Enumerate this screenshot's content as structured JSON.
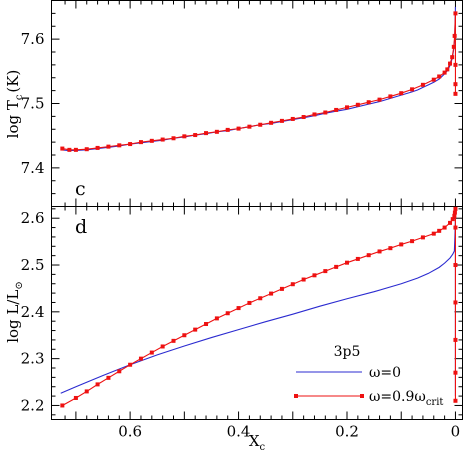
{
  "chart_data": [
    {
      "type": "line",
      "panel_label": "c",
      "xlabel": "X",
      "xlabel_sub": "c",
      "ylabel": "log T",
      "ylabel_sub": "c",
      "ylabel_tail": "(K)",
      "xlim": [
        0.745,
        -0.013
      ],
      "ylim": [
        7.34,
        7.66
      ],
      "yticks": [
        7.4,
        7.5,
        7.6
      ],
      "ytick_labels": [
        "7.4",
        "7.5",
        "7.6"
      ],
      "grid": false,
      "series": [
        {
          "name": "ω=0",
          "color": "#2b2bd0",
          "marker": "none",
          "x": [
            0.728,
            0.715,
            0.7,
            0.68,
            0.66,
            0.64,
            0.62,
            0.6,
            0.58,
            0.56,
            0.54,
            0.52,
            0.5,
            0.48,
            0.46,
            0.44,
            0.42,
            0.4,
            0.38,
            0.36,
            0.34,
            0.32,
            0.3,
            0.28,
            0.26,
            0.24,
            0.22,
            0.2,
            0.18,
            0.16,
            0.14,
            0.12,
            0.1,
            0.08,
            0.07,
            0.06,
            0.05,
            0.04,
            0.03,
            0.02,
            0.015,
            0.01,
            0.006,
            0.003,
            0.0015,
            0.0
          ],
          "y": [
            7.428,
            7.427,
            7.427,
            7.428,
            7.43,
            7.432,
            7.434,
            7.437,
            7.439,
            7.441,
            7.443,
            7.446,
            7.448,
            7.451,
            7.453,
            7.456,
            7.458,
            7.461,
            7.464,
            7.467,
            7.469,
            7.472,
            7.475,
            7.478,
            7.481,
            7.485,
            7.488,
            7.491,
            7.495,
            7.499,
            7.503,
            7.508,
            7.513,
            7.518,
            7.521,
            7.525,
            7.529,
            7.533,
            7.538,
            7.546,
            7.551,
            7.559,
            7.57,
            7.585,
            7.6,
            7.65
          ]
        },
        {
          "name": "ω=0.9ω",
          "name_sub": "crit",
          "color": "#ee1111",
          "marker": "square",
          "x": [
            0.725,
            0.712,
            0.7,
            0.68,
            0.66,
            0.64,
            0.62,
            0.6,
            0.58,
            0.56,
            0.54,
            0.52,
            0.5,
            0.48,
            0.46,
            0.44,
            0.42,
            0.4,
            0.38,
            0.36,
            0.34,
            0.32,
            0.3,
            0.28,
            0.26,
            0.24,
            0.22,
            0.2,
            0.18,
            0.16,
            0.14,
            0.12,
            0.1,
            0.08,
            0.06,
            0.04,
            0.03,
            0.02,
            0.015,
            0.01,
            0.006,
            0.003,
            0.0015,
            0.0,
            0.0,
            0.0,
            0.0
          ],
          "y": [
            7.43,
            7.428,
            7.428,
            7.429,
            7.431,
            7.433,
            7.435,
            7.437,
            7.44,
            7.442,
            7.444,
            7.446,
            7.449,
            7.451,
            7.454,
            7.456,
            7.459,
            7.461,
            7.464,
            7.467,
            7.47,
            7.473,
            7.476,
            7.479,
            7.483,
            7.486,
            7.49,
            7.494,
            7.498,
            7.502,
            7.506,
            7.511,
            7.516,
            7.522,
            7.529,
            7.537,
            7.542,
            7.548,
            7.553,
            7.562,
            7.572,
            7.588,
            7.605,
            7.64,
            7.56,
            7.53,
            7.515
          ]
        }
      ]
    },
    {
      "type": "line",
      "panel_label": "d",
      "xlabel": "X",
      "xlabel_sub": "c",
      "ylabel": "log L/L",
      "ylabel_sub": "⊙",
      "xlim": [
        0.745,
        -0.013
      ],
      "ylim": [
        2.17,
        2.625
      ],
      "xticks": [
        0.6,
        0.4,
        0.2,
        0.0
      ],
      "xtick_labels": [
        "0.6",
        "0.4",
        "0.2",
        "0"
      ],
      "yticks": [
        2.2,
        2.3,
        2.4,
        2.5,
        2.6
      ],
      "ytick_labels": [
        "2.2",
        "2.3",
        "2.4",
        "2.5",
        "2.6"
      ],
      "grid": false,
      "legend": {
        "title": "3p5",
        "placement": "bottom-right",
        "entries": [
          {
            "label": "ω=0",
            "sub": "",
            "color": "#2b2bd0",
            "marker": "none"
          },
          {
            "label": "ω=0.9ω",
            "sub": "crit",
            "color": "#ee1111",
            "marker": "square"
          }
        ]
      },
      "series": [
        {
          "name": "ω=0",
          "color": "#2b2bd0",
          "marker": "none",
          "x": [
            0.728,
            0.7,
            0.65,
            0.6,
            0.55,
            0.5,
            0.45,
            0.4,
            0.35,
            0.3,
            0.25,
            0.2,
            0.15,
            0.1,
            0.07,
            0.05,
            0.03,
            0.02,
            0.01,
            0.005,
            0.002,
            0.001,
            0.0,
            0.0
          ],
          "y": [
            2.226,
            2.24,
            2.264,
            2.287,
            2.308,
            2.327,
            2.345,
            2.362,
            2.379,
            2.395,
            2.412,
            2.428,
            2.443,
            2.46,
            2.472,
            2.482,
            2.495,
            2.504,
            2.515,
            2.523,
            2.53,
            2.56,
            2.6,
            2.22
          ]
        },
        {
          "name": "ω=0.9ω",
          "name_sub": "crit",
          "color": "#ee1111",
          "marker": "square",
          "x": [
            0.725,
            0.7,
            0.68,
            0.66,
            0.64,
            0.62,
            0.6,
            0.58,
            0.56,
            0.54,
            0.52,
            0.5,
            0.48,
            0.46,
            0.44,
            0.42,
            0.4,
            0.38,
            0.36,
            0.34,
            0.32,
            0.3,
            0.28,
            0.26,
            0.24,
            0.22,
            0.2,
            0.18,
            0.16,
            0.14,
            0.12,
            0.1,
            0.08,
            0.06,
            0.04,
            0.03,
            0.02,
            0.01,
            0.005,
            0.002,
            0.001,
            0.0,
            0.0,
            0.0,
            0.0,
            0.0,
            0.0,
            0.0
          ],
          "y": [
            2.2,
            2.216,
            2.23,
            2.245,
            2.259,
            2.273,
            2.287,
            2.3,
            2.313,
            2.326,
            2.338,
            2.35,
            2.362,
            2.374,
            2.386,
            2.397,
            2.408,
            2.419,
            2.429,
            2.439,
            2.449,
            2.459,
            2.469,
            2.478,
            2.487,
            2.496,
            2.505,
            2.513,
            2.521,
            2.529,
            2.536,
            2.544,
            2.551,
            2.559,
            2.567,
            2.573,
            2.58,
            2.59,
            2.598,
            2.605,
            2.612,
            2.62,
            2.58,
            2.5,
            2.42,
            2.34,
            2.27,
            2.21
          ]
        }
      ]
    }
  ]
}
